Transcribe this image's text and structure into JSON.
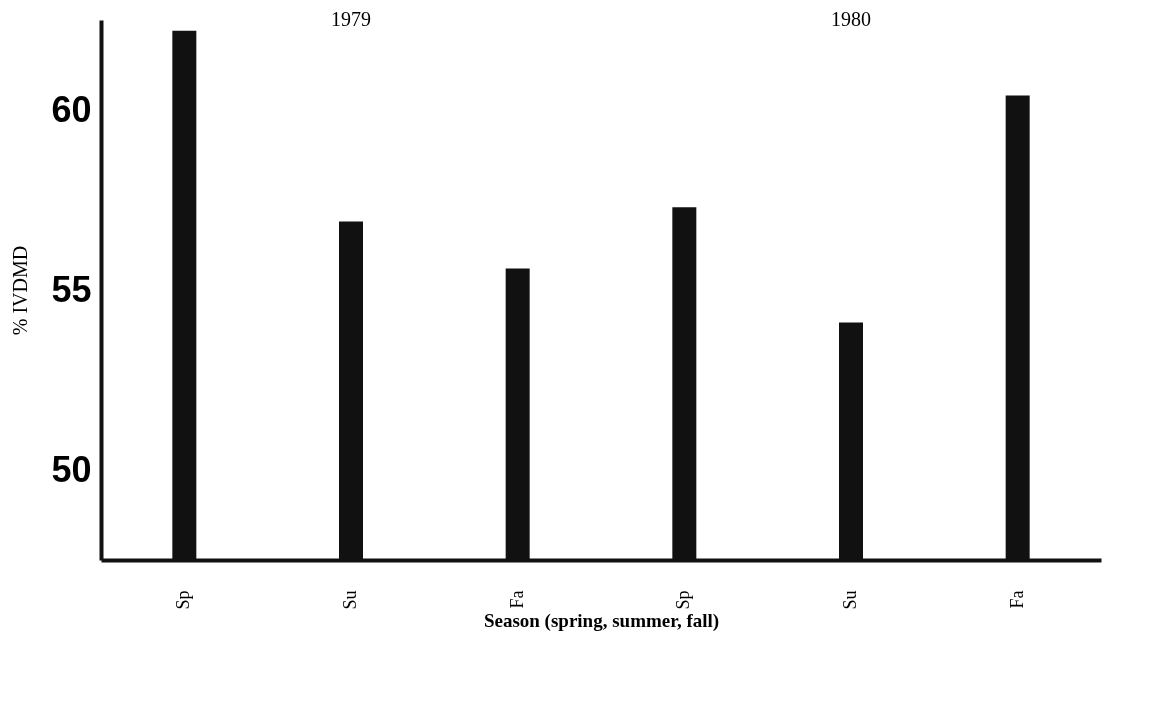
{
  "chart_data": {
    "type": "bar",
    "xlabel": "Season  (spring, summer, fall)",
    "ylabel": "%   IVDMD",
    "categories": [
      "Sp",
      "Su",
      "Fa",
      "Sp",
      "Su",
      "Fa"
    ],
    "values": [
      62.2,
      56.9,
      55.6,
      57.3,
      54.1,
      60.4
    ],
    "color": "#111111",
    "ylim": [
      47.5,
      62.5
    ],
    "yticks": [
      50,
      55,
      60
    ],
    "grid": false,
    "annotations": [
      "1979",
      "1980"
    ]
  }
}
